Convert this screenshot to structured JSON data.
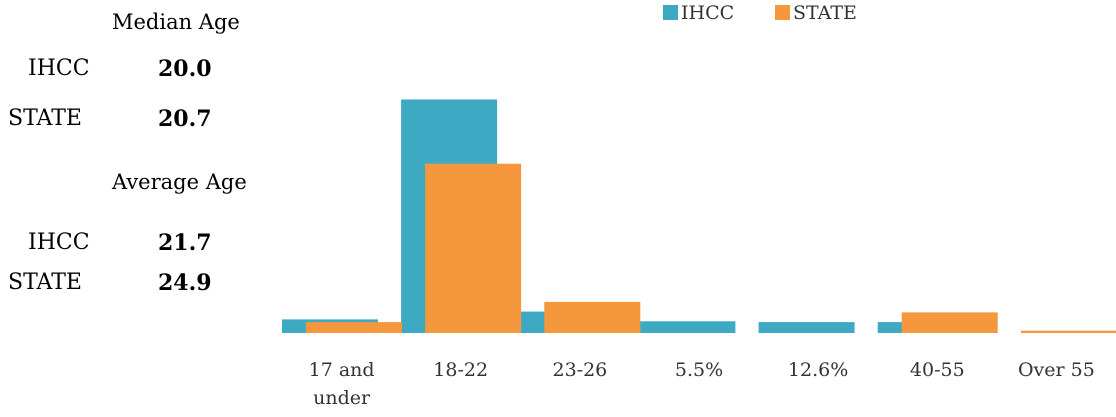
{
  "stats": {
    "median_heading": "Median Age",
    "average_heading": "Average Age",
    "median": [
      {
        "label": "IHCC",
        "value": "20.0"
      },
      {
        "label": "STATE",
        "value": "20.7"
      }
    ],
    "average": [
      {
        "label": "IHCC",
        "value": "21.7"
      },
      {
        "label": "STATE",
        "value": "24.9"
      }
    ]
  },
  "chart_data": {
    "type": "bar",
    "categories": [
      "17 and under",
      "18-22",
      "23-26",
      "5.5%",
      "12.6%",
      "40-55",
      "Over 55"
    ],
    "category_lines": [
      [
        "17 and",
        "under"
      ],
      [
        "18-22"
      ],
      [
        "23-26"
      ],
      [
        "5.5%"
      ],
      [
        "12.6%"
      ],
      [
        "40-55"
      ],
      [
        "Over 55"
      ]
    ],
    "series": [
      {
        "name": "IHCC",
        "color": "#3EA9C3",
        "values": [
          3.5,
          60.0,
          5.5,
          3.0,
          2.8,
          2.8,
          0.0
        ]
      },
      {
        "name": "STATE",
        "color": "#F5973C",
        "values": [
          2.8,
          43.5,
          8.0,
          0.0,
          0.0,
          5.3,
          0.6
        ]
      }
    ],
    "ylim": [
      0,
      65
    ],
    "grid": false,
    "legend_position": "top",
    "title": "",
    "xlabel": "",
    "ylabel": ""
  }
}
